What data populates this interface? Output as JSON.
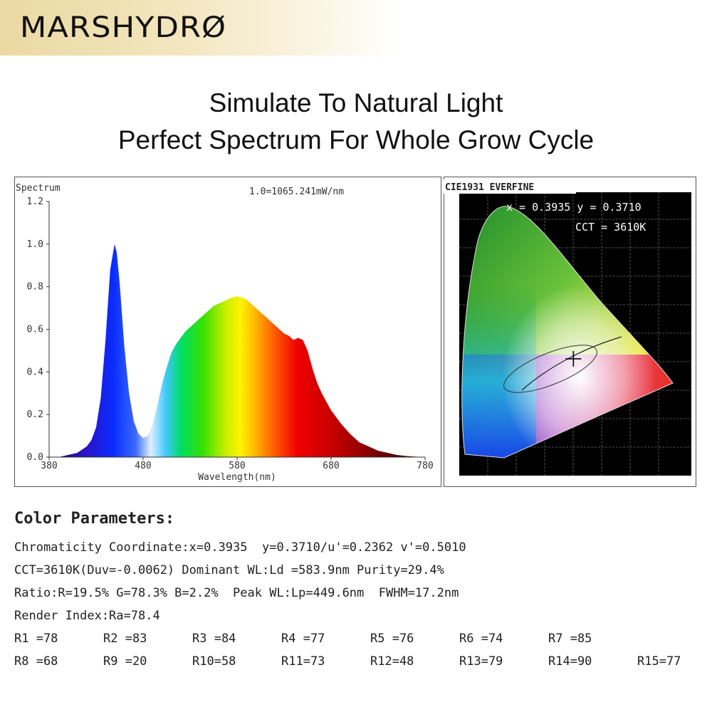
{
  "brand": {
    "logo_text": "MARSHYDRØ"
  },
  "headline": {
    "line1": "Simulate To Natural Light",
    "line2": "Perfect Spectrum For Whole Grow Cycle"
  },
  "chart_data": [
    {
      "type": "area",
      "title": "Spectrum",
      "annotation": "1.0=1065.241mW/nm",
      "xlabel": "Wavelength(nm)",
      "ylabel": "",
      "xlim": [
        380,
        780
      ],
      "ylim": [
        0,
        1.2
      ],
      "x_ticks": [
        "380",
        "480",
        "580",
        "680",
        "780"
      ],
      "y_ticks": [
        "0.0",
        "0.2",
        "0.4",
        "0.6",
        "0.8",
        "1.0",
        "1.2"
      ],
      "grid": false,
      "fill": "wavelength-colored",
      "x": [
        380,
        390,
        400,
        410,
        420,
        425,
        430,
        435,
        440,
        445,
        449.6,
        452,
        455,
        460,
        465,
        470,
        475,
        480,
        485,
        490,
        495,
        500,
        505,
        510,
        515,
        520,
        525,
        530,
        535,
        540,
        545,
        550,
        555,
        560,
        565,
        570,
        575,
        580,
        585,
        590,
        595,
        600,
        605,
        610,
        615,
        620,
        625,
        630,
        635,
        640,
        645,
        650,
        655,
        660,
        665,
        670,
        680,
        690,
        700,
        710,
        720,
        730,
        740,
        750,
        760,
        770,
        780
      ],
      "values": [
        0.0,
        0.0,
        0.01,
        0.02,
        0.05,
        0.08,
        0.14,
        0.28,
        0.55,
        0.88,
        1.0,
        0.96,
        0.82,
        0.52,
        0.3,
        0.17,
        0.11,
        0.09,
        0.1,
        0.15,
        0.24,
        0.34,
        0.42,
        0.49,
        0.53,
        0.56,
        0.59,
        0.61,
        0.63,
        0.65,
        0.67,
        0.69,
        0.71,
        0.72,
        0.73,
        0.74,
        0.75,
        0.755,
        0.75,
        0.74,
        0.72,
        0.7,
        0.68,
        0.66,
        0.64,
        0.62,
        0.6,
        0.58,
        0.57,
        0.55,
        0.56,
        0.55,
        0.5,
        0.42,
        0.35,
        0.3,
        0.22,
        0.16,
        0.11,
        0.07,
        0.05,
        0.03,
        0.02,
        0.01,
        0.005,
        0.002,
        0.0
      ]
    },
    {
      "type": "scatter",
      "title": "CIE1931 EVERFINE",
      "point_label": "x = 0.3935 y = 0.3710",
      "cct_label": "CCT = 3610K",
      "x": [
        0.3935
      ],
      "values": [
        0.371
      ],
      "xlim": [
        0,
        0.8
      ],
      "ylim": [
        0,
        0.9
      ]
    }
  ],
  "params": {
    "title": "Color Parameters:",
    "lines": [
      "Chromaticity Coordinate:x=0.3935  y=0.3710/u'=0.2362 v'=0.5010",
      "CCT=3610K(Duv=-0.0062) Dominant WL:Ld =583.9nm Purity=29.4%",
      "Ratio:R=19.5% G=78.3% B=2.2%  Peak WL:Lp=449.6nm  FWHM=17.2nm",
      "Render Index:Ra=78.4"
    ],
    "r_row1": [
      "R1 =78",
      "R2 =83",
      "R3 =84",
      "R4 =77",
      "R5 =76",
      "R6 =74",
      "R7 =85"
    ],
    "r_row2": [
      "R8 =68",
      "R9 =20",
      "R10=58",
      "R11=73",
      "R12=48",
      "R13=79",
      "R14=90",
      "R15=77"
    ]
  },
  "colors": {
    "cie_background": "#000000",
    "panel_border": "#555555"
  }
}
